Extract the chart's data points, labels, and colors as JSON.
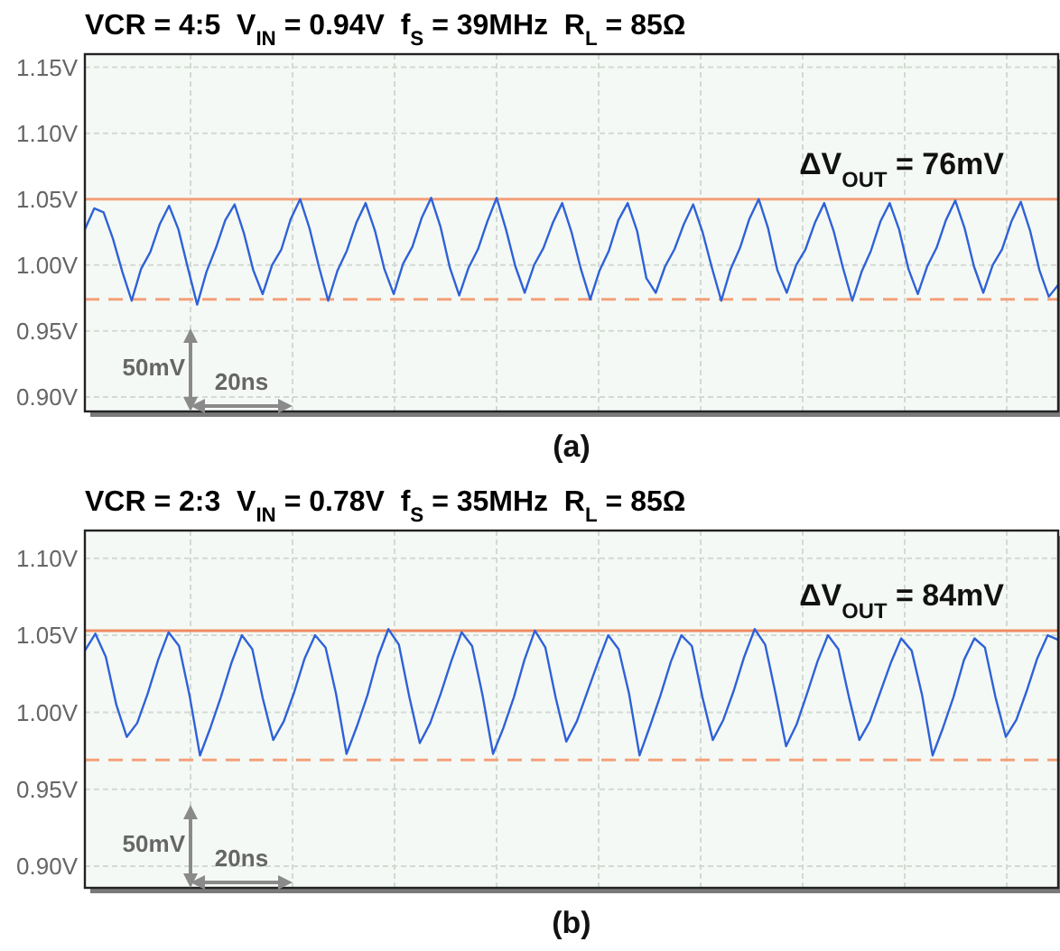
{
  "chart_data": [
    {
      "type": "line",
      "title": "VCR = 4:5  V$_{IN}$ = 0.94V  f$_{S}$ = 39MHz  R$_{L}$ = 85Ω",
      "annotations": [
        "ΔV$_{OUT}$ = 76mV",
        "50mV",
        "20ns",
        "(a)"
      ],
      "categories": [
        null,
        null,
        null,
        null,
        null,
        null,
        null,
        null,
        null,
        null,
        null,
        null,
        null,
        null,
        null,
        null,
        null,
        null,
        null,
        null,
        null,
        null,
        null,
        null,
        null,
        null,
        null,
        null,
        null,
        null,
        null,
        null,
        null,
        null,
        null,
        null,
        null,
        null,
        null,
        null,
        null,
        null,
        null,
        null,
        null,
        null,
        null,
        null,
        null,
        null,
        null,
        null,
        null,
        null,
        null,
        null,
        null,
        null,
        null,
        null,
        null,
        null,
        null,
        null,
        null,
        null,
        null,
        null,
        null,
        null,
        null,
        null,
        null,
        null,
        null,
        null,
        null,
        null,
        null,
        null,
        null,
        null,
        null,
        null,
        null,
        null,
        null,
        null,
        null,
        null,
        null,
        null,
        null,
        null,
        null,
        null,
        null,
        null,
        null,
        null,
        null,
        null,
        null,
        null,
        null
      ],
      "series": [
        {
          "color": "#2f62d8",
          "values": [
            1.027,
            1.043,
            1.04,
            1.02,
            0.995,
            0.973,
            0.997,
            1.01,
            1.031,
            1.045,
            1.027,
            0.998,
            0.97,
            0.995,
            1.013,
            1.034,
            1.046,
            1.024,
            0.996,
            0.978,
            1.0,
            1.012,
            1.035,
            1.05,
            1.028,
            0.999,
            0.973,
            0.996,
            1.011,
            1.032,
            1.047,
            1.026,
            0.997,
            0.978,
            1.001,
            1.014,
            1.036,
            1.051,
            1.029,
            0.998,
            0.977,
            0.998,
            1.012,
            1.033,
            1.051,
            1.027,
            0.999,
            0.979,
            1.0,
            1.013,
            1.032,
            1.047,
            1.025,
            0.997,
            0.974,
            0.996,
            1.011,
            1.034,
            1.047,
            1.026,
            0.99,
            0.979,
            0.999,
            1.012,
            1.031,
            1.046,
            1.025,
            0.998,
            0.973,
            0.997,
            1.013,
            1.035,
            1.05,
            1.028,
            0.996,
            0.979,
            1.0,
            1.012,
            1.032,
            1.047,
            1.026,
            0.998,
            0.973,
            0.995,
            1.011,
            1.033,
            1.047,
            1.027,
            0.997,
            0.978,
            0.999,
            1.013,
            1.034,
            1.049,
            1.028,
            0.999,
            0.979,
            1.0,
            1.012,
            1.033,
            1.048,
            1.026,
            0.996,
            0.976,
            0.985
          ]
        }
      ],
      "ylim": [
        0.889,
        1.16
      ],
      "yticks": [
        {
          "value": 0.9,
          "label": "0.90V"
        },
        {
          "value": 0.95,
          "label": "0.95V"
        },
        {
          "value": 1.0,
          "label": "1.00V"
        },
        {
          "value": 1.05,
          "label": "1.05V"
        },
        {
          "value": 1.1,
          "label": "1.10V"
        },
        {
          "value": 1.15,
          "label": "1.15V"
        }
      ],
      "ref_lines": [
        {
          "axis": "y",
          "value": 1.05,
          "color": "#f4a07a",
          "line_style": "solid"
        },
        {
          "axis": "y",
          "value": 0.974,
          "color": "#f4a07a",
          "line_style": "dashed"
        }
      ],
      "grid": true,
      "tick_labels": "y"
    },
    {
      "type": "line",
      "title": "VCR = 2:3  V$_{IN}$ = 0.78V  f$_{S}$ = 35MHz  R$_{L}$ = 85Ω",
      "annotations": [
        "ΔV$_{OUT}$ = 84mV",
        "50mV",
        "20ns",
        "(b)"
      ],
      "categories": [
        null,
        null,
        null,
        null,
        null,
        null,
        null,
        null,
        null,
        null,
        null,
        null,
        null,
        null,
        null,
        null,
        null,
        null,
        null,
        null,
        null,
        null,
        null,
        null,
        null,
        null,
        null,
        null,
        null,
        null,
        null,
        null,
        null,
        null,
        null,
        null,
        null,
        null,
        null,
        null,
        null,
        null,
        null,
        null,
        null,
        null,
        null,
        null,
        null,
        null,
        null,
        null,
        null,
        null,
        null,
        null,
        null,
        null,
        null,
        null,
        null,
        null,
        null,
        null,
        null,
        null,
        null,
        null,
        null,
        null,
        null,
        null,
        null,
        null,
        null,
        null,
        null,
        null,
        null,
        null,
        null,
        null,
        null,
        null,
        null,
        null,
        null,
        null,
        null,
        null,
        null,
        null,
        null,
        null
      ],
      "series": [
        {
          "color": "#2f62d8",
          "values": [
            1.04,
            1.051,
            1.036,
            1.005,
            0.984,
            0.993,
            1.012,
            1.034,
            1.052,
            1.043,
            1.011,
            0.972,
            0.99,
            1.01,
            1.032,
            1.05,
            1.041,
            1.009,
            0.982,
            0.994,
            1.013,
            1.035,
            1.05,
            1.042,
            1.012,
            0.973,
            0.991,
            1.011,
            1.036,
            1.054,
            1.044,
            1.01,
            0.98,
            0.993,
            1.012,
            1.033,
            1.052,
            1.043,
            1.011,
            0.973,
            0.99,
            1.01,
            1.034,
            1.053,
            1.042,
            1.009,
            0.981,
            0.994,
            1.013,
            1.032,
            1.05,
            1.041,
            1.012,
            0.972,
            0.991,
            1.011,
            1.033,
            1.05,
            1.043,
            1.01,
            0.982,
            0.995,
            1.014,
            1.036,
            1.054,
            1.044,
            1.012,
            0.978,
            0.992,
            1.012,
            1.033,
            1.05,
            1.041,
            1.01,
            0.982,
            0.994,
            1.013,
            1.032,
            1.048,
            1.04,
            1.011,
            0.972,
            0.99,
            1.01,
            1.034,
            1.048,
            1.042,
            1.01,
            0.984,
            0.995,
            1.014,
            1.035,
            1.05,
            1.047
          ]
        }
      ],
      "ylim": [
        0.886,
        1.118
      ],
      "yticks": [
        {
          "value": 0.9,
          "label": "0.90V"
        },
        {
          "value": 0.95,
          "label": "0.95V"
        },
        {
          "value": 1.0,
          "label": "1.00V"
        },
        {
          "value": 1.05,
          "label": "1.05V"
        },
        {
          "value": 1.1,
          "label": "1.10V"
        }
      ],
      "ref_lines": [
        {
          "axis": "y",
          "value": 1.053,
          "color": "#f08a60",
          "line_style": "solid"
        },
        {
          "axis": "y",
          "value": 0.969,
          "color": "#f4a07a",
          "line_style": "dashed"
        }
      ],
      "grid": true,
      "tick_labels": "y"
    }
  ]
}
